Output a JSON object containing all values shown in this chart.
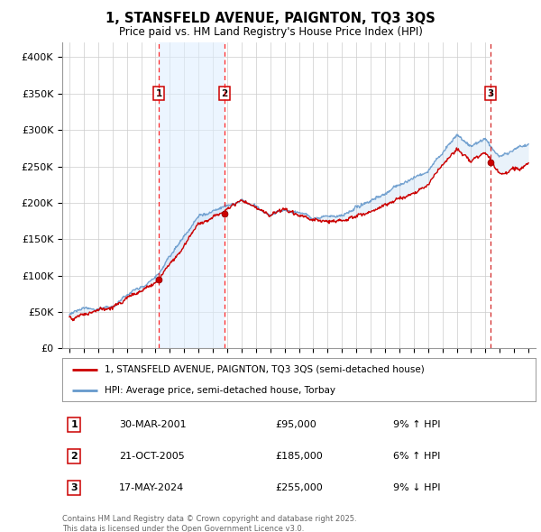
{
  "title": "1, STANSFELD AVENUE, PAIGNTON, TQ3 3QS",
  "subtitle": "Price paid vs. HM Land Registry's House Price Index (HPI)",
  "ylim": [
    0,
    420000
  ],
  "yticks": [
    0,
    50000,
    100000,
    150000,
    200000,
    250000,
    300000,
    350000,
    400000
  ],
  "ytick_labels": [
    "£0",
    "£50K",
    "£100K",
    "£150K",
    "£200K",
    "£250K",
    "£300K",
    "£350K",
    "£400K"
  ],
  "sale_dates": [
    2001.24,
    2005.81,
    2024.38
  ],
  "sale_prices": [
    95000,
    185000,
    255000
  ],
  "sale_labels": [
    "1",
    "2",
    "3"
  ],
  "legend_line1": "1, STANSFELD AVENUE, PAIGNTON, TQ3 3QS (semi-detached house)",
  "legend_line2": "HPI: Average price, semi-detached house, Torbay",
  "line_color_red": "#cc0000",
  "line_color_blue": "#6699cc",
  "fill_color": "#ddeeff",
  "hatch_color": "#bbccdd",
  "table_rows": [
    [
      "1",
      "30-MAR-2001",
      "£95,000",
      "9% ↑ HPI"
    ],
    [
      "2",
      "21-OCT-2005",
      "£185,000",
      "6% ↑ HPI"
    ],
    [
      "3",
      "17-MAY-2024",
      "£255,000",
      "9% ↓ HPI"
    ]
  ],
  "footnote": "Contains HM Land Registry data © Crown copyright and database right 2025.\nThis data is licensed under the Open Government Licence v3.0.",
  "xlim_start": 1994.5,
  "xlim_end": 2027.5
}
